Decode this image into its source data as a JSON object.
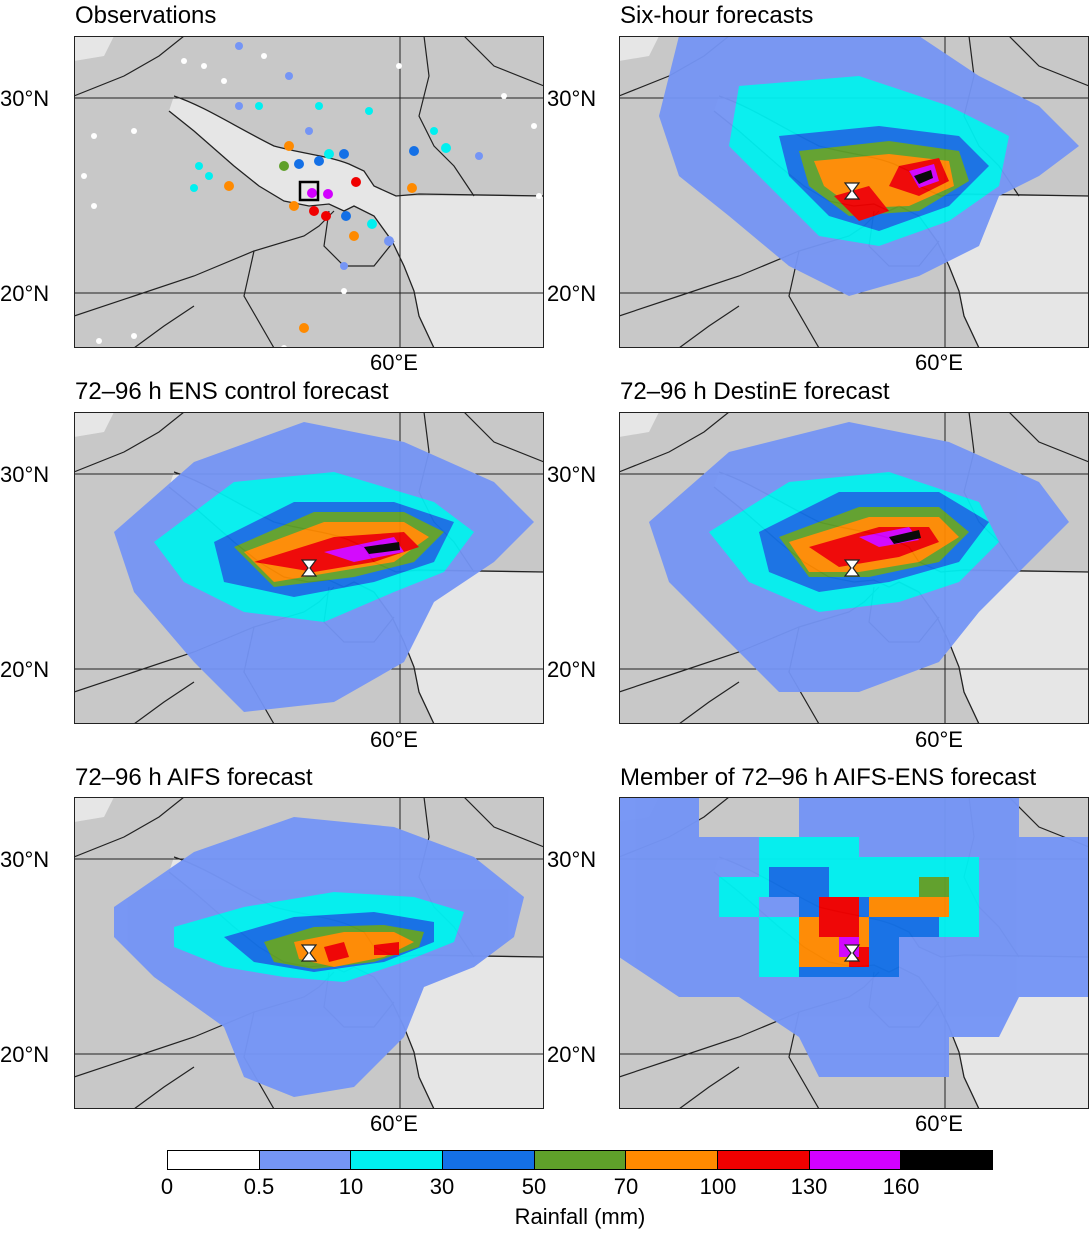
{
  "panels": [
    {
      "title": "Observations"
    },
    {
      "title": "Six-hour forecasts"
    },
    {
      "title": "72–96 h ENS control forecast"
    },
    {
      "title": "72–96 h DestinE forecast"
    },
    {
      "title": "72–96 h AIFS forecast"
    },
    {
      "title": "Member of 72–96 h AIFS-ENS forecast"
    }
  ],
  "axes": {
    "lat_labels": [
      "30°N",
      "20°N"
    ],
    "lon_label": "60°E"
  },
  "colorbar": {
    "label": "Rainfall (mm)",
    "ticks": [
      "0",
      "0.5",
      "10",
      "30",
      "50",
      "70",
      "100",
      "130",
      "160"
    ],
    "colors": [
      "#ffffff",
      "#7595f5",
      "#00f0f0",
      "#1470e6",
      "#5fa02a",
      "#ff8a00",
      "#f00000",
      "#d200ff",
      "#000000"
    ]
  },
  "map_colors": {
    "land": "#c8c8c8",
    "sea": "#e6e6e6",
    "border": "#222222"
  }
}
